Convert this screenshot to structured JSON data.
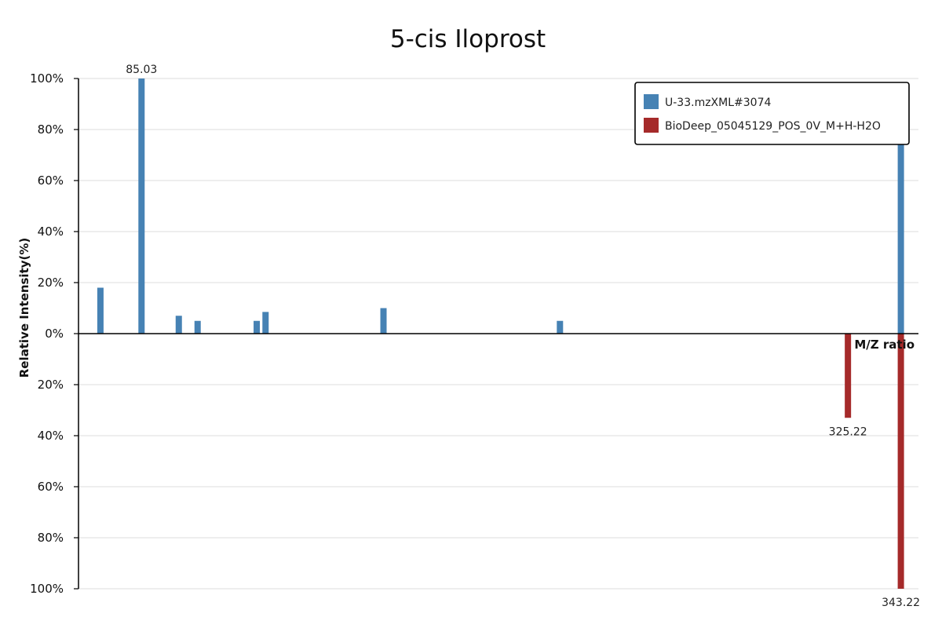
{
  "chart_data": {
    "type": "bar",
    "title": "5-cis Iloprost",
    "xlabel": "M/Z ratio",
    "ylabel": "Relative Intensity(%)",
    "ylim": [
      -100,
      100
    ],
    "yticks": [
      {
        "value": 100,
        "label": "100%"
      },
      {
        "value": 80,
        "label": "80%"
      },
      {
        "value": 60,
        "label": "60%"
      },
      {
        "value": 40,
        "label": "40%"
      },
      {
        "value": 20,
        "label": "20%"
      },
      {
        "value": 0,
        "label": "0%"
      },
      {
        "value": -20,
        "label": "20%"
      },
      {
        "value": -40,
        "label": "40%"
      },
      {
        "value": -60,
        "label": "60%"
      },
      {
        "value": -80,
        "label": "80%"
      },
      {
        "value": -100,
        "label": "100%"
      }
    ],
    "xlim": [
      63.6,
      349.2
    ],
    "grid": true,
    "legend_position": "top-right",
    "series": [
      {
        "name": "U-33.mzXML#3074",
        "color": "#4682b4",
        "direction": "up",
        "peaks": [
          {
            "mz": 71.05,
            "intensity": 18
          },
          {
            "mz": 85.03,
            "intensity": 100,
            "label": "85.03"
          },
          {
            "mz": 97.7,
            "intensity": 7
          },
          {
            "mz": 104.1,
            "intensity": 5
          },
          {
            "mz": 124.2,
            "intensity": 5
          },
          {
            "mz": 127.2,
            "intensity": 8.5
          },
          {
            "mz": 167.3,
            "intensity": 10
          },
          {
            "mz": 227.3,
            "intensity": 5
          },
          {
            "mz": 343.22,
            "intensity": 76
          }
        ]
      },
      {
        "name": "BioDeep_05045129_POS_0V_M+H-H2O",
        "color": "#a52a2a",
        "direction": "down",
        "peaks": [
          {
            "mz": 325.22,
            "intensity": 33,
            "label": "325.22"
          },
          {
            "mz": 343.22,
            "intensity": 100,
            "label": "343.22"
          }
        ]
      }
    ]
  }
}
